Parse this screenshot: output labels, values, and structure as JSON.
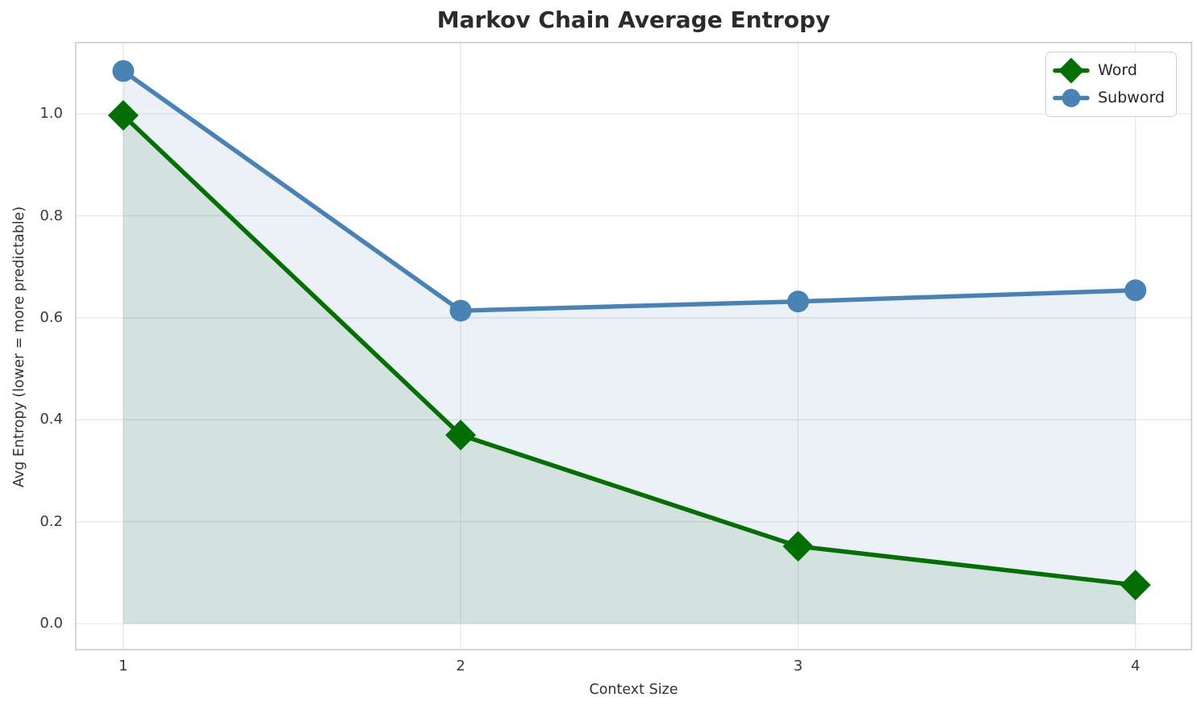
{
  "title": "Markov Chain Average Entropy",
  "chart_data": {
    "type": "line",
    "x": [
      1,
      2,
      3,
      4
    ],
    "xlabel": "Context Size",
    "ylabel": "Avg Entropy (lower = more predictable)",
    "series": [
      {
        "name": "Word",
        "color": "#056e05",
        "marker": "diamond",
        "values": [
          0.997,
          0.37,
          0.152,
          0.076
        ],
        "area_fill": true
      },
      {
        "name": "Subword",
        "color": "#4a82b4",
        "marker": "circle",
        "values": [
          1.084,
          0.614,
          0.632,
          0.654
        ],
        "area_fill": true
      }
    ],
    "fill_opacity": 0.11,
    "fill_baseline": 0,
    "xticks": [
      1,
      2,
      3,
      4
    ],
    "xtick_labels": [
      "1",
      "2",
      "3",
      "4"
    ],
    "yticks": [
      0,
      0.2,
      0.4,
      0.6,
      0.8,
      1.0
    ],
    "ytick_labels": [
      "0.0",
      "0.2",
      "0.4",
      "0.6",
      "0.8",
      "1.0"
    ],
    "xlim": [
      0.857,
      4.168
    ],
    "ylim": [
      -0.052,
      1.141
    ],
    "grid": true,
    "legend_position": "upper right"
  },
  "legend": {
    "items": [
      {
        "label": "Word"
      },
      {
        "label": "Subword"
      }
    ]
  },
  "colors": {
    "grid": "#e6e6e6",
    "spine": "#c9c9c9",
    "title_text": "#2b2b2b",
    "tick_text": "#3a3a3a",
    "background": "#ffffff",
    "legend_border": "#cfcfcf"
  }
}
